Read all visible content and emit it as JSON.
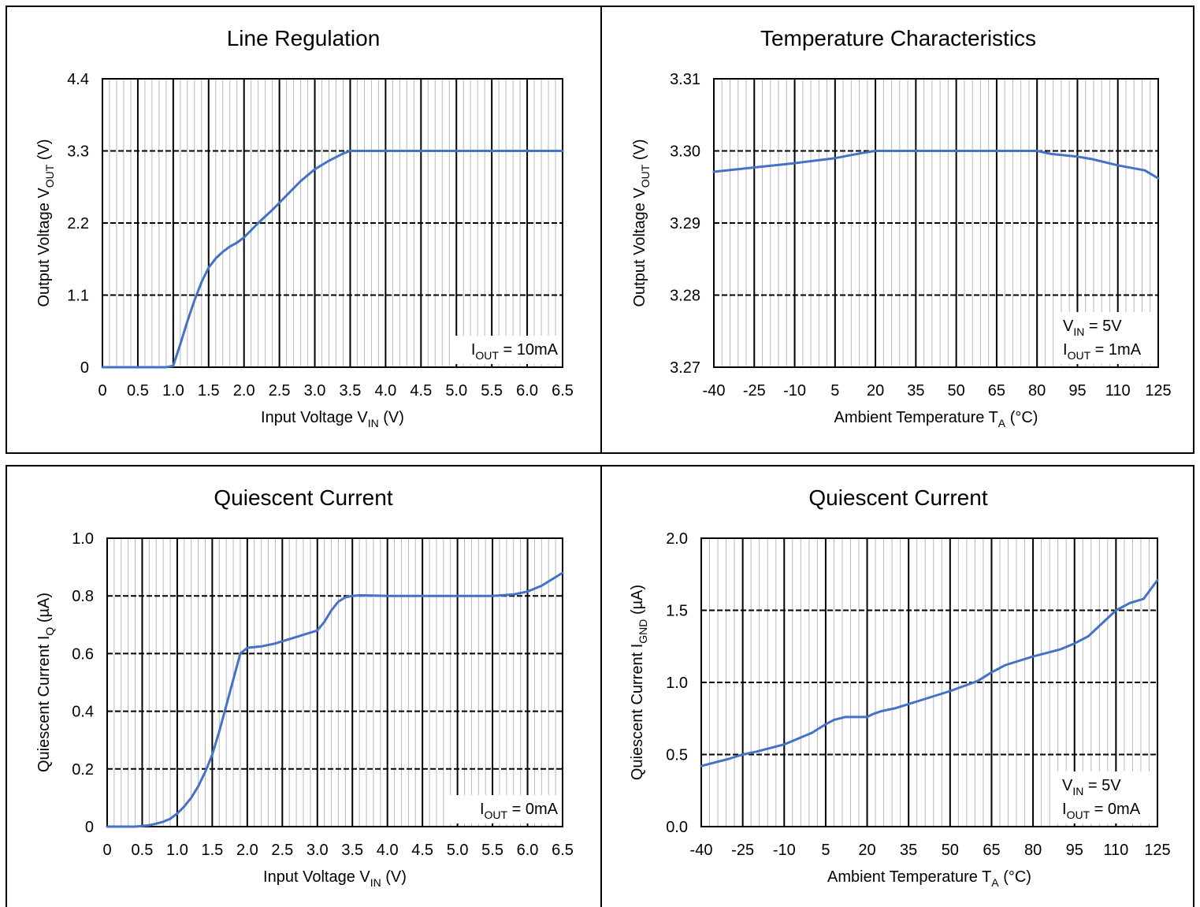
{
  "chart_data": [
    {
      "type": "line",
      "title": "Line Regulation",
      "xlabel": "Input Voltage V",
      "xlabel_sub": "IN",
      "xlabel_unit": " (V)",
      "ylabel": "Output Voltage V",
      "ylabel_sub": "OUT",
      "ylabel_unit": " (V)",
      "xlim": [
        0,
        6.5
      ],
      "ylim": [
        0,
        4.4
      ],
      "x_ticks": [
        0,
        0.5,
        1.0,
        1.5,
        2.0,
        2.5,
        3.0,
        3.5,
        4.0,
        4.5,
        5.0,
        5.5,
        6.0,
        6.5
      ],
      "x_tick_labels": [
        "0",
        "0.5",
        "1.0",
        "1.5",
        "2.0",
        "2.5",
        "3.0",
        "3.5",
        "4.0",
        "4.5",
        "5.0",
        "5.5",
        "6.0",
        "6.5"
      ],
      "y_ticks": [
        0,
        1.1,
        2.2,
        3.3,
        4.4
      ],
      "y_tick_labels": [
        "0",
        "1.1",
        "2.2",
        "3.3",
        "4.4"
      ],
      "x_minor_step": 0.1,
      "grid": true,
      "annotation": [
        {
          "main": "I",
          "sub": "OUT",
          "rest": " = 10mA"
        }
      ],
      "series": [
        {
          "color": "#4472C4",
          "x": [
            0,
            0.5,
            0.9,
            1.0,
            1.1,
            1.2,
            1.3,
            1.4,
            1.5,
            1.6,
            1.7,
            1.8,
            1.9,
            2.0,
            2.2,
            2.4,
            2.6,
            2.8,
            3.0,
            3.2,
            3.4,
            3.5,
            4.0,
            5.0,
            6.0,
            6.5
          ],
          "y": [
            0,
            0,
            0,
            0.02,
            0.35,
            0.7,
            1.02,
            1.3,
            1.52,
            1.66,
            1.76,
            1.84,
            1.9,
            1.98,
            2.2,
            2.4,
            2.62,
            2.84,
            3.02,
            3.15,
            3.26,
            3.3,
            3.3,
            3.3,
            3.3,
            3.3
          ]
        }
      ]
    },
    {
      "type": "line",
      "title": "Temperature Characteristics",
      "xlabel": "Ambient Temperature T",
      "xlabel_sub": "A",
      "xlabel_unit": " (°C)",
      "ylabel": "Output Voltage V",
      "ylabel_sub": "OUT",
      "ylabel_unit": " (V)",
      "xlim": [
        -40,
        125
      ],
      "ylim": [
        3.27,
        3.31
      ],
      "x_ticks": [
        -40,
        -25,
        -10,
        5,
        20,
        35,
        50,
        65,
        80,
        95,
        110,
        125
      ],
      "x_tick_labels": [
        "-40",
        "-25",
        "-10",
        "5",
        "20",
        "35",
        "50",
        "65",
        "80",
        "95",
        "110",
        "125"
      ],
      "y_ticks": [
        3.27,
        3.28,
        3.29,
        3.3,
        3.31
      ],
      "y_tick_labels": [
        "3.27",
        "3.28",
        "3.29",
        "3.30",
        "3.31"
      ],
      "x_minor_step": 3,
      "grid": true,
      "annotation": [
        {
          "main": "V",
          "sub": "IN",
          "rest": " = 5V"
        },
        {
          "main": "I",
          "sub": "OUT",
          "rest": " = 1mA"
        }
      ],
      "series": [
        {
          "color": "#4472C4",
          "x": [
            -40,
            -25,
            -10,
            5,
            15,
            20,
            25,
            35,
            50,
            65,
            75,
            80,
            85,
            95,
            100,
            110,
            120,
            125
          ],
          "y": [
            3.2971,
            3.2977,
            3.2983,
            3.299,
            3.2997,
            3.3,
            3.3,
            3.3,
            3.3,
            3.3,
            3.3,
            3.3,
            3.2996,
            3.2992,
            3.2989,
            3.298,
            3.2973,
            3.2962
          ]
        }
      ]
    },
    {
      "type": "line",
      "title": "Quiescent Current",
      "xlabel": "Input Voltage V",
      "xlabel_sub": "IN",
      "xlabel_unit": " (V)",
      "ylabel": "Quiescent Current I",
      "ylabel_sub": "Q",
      "ylabel_unit": " (µA)",
      "xlim": [
        0,
        6.5
      ],
      "ylim": [
        0,
        1.0
      ],
      "x_ticks": [
        0,
        0.5,
        1.0,
        1.5,
        2.0,
        2.5,
        3.0,
        3.5,
        4.0,
        4.5,
        5.0,
        5.5,
        6.0,
        6.5
      ],
      "x_tick_labels": [
        "0",
        "0.5",
        "1.0",
        "1.5",
        "2.0",
        "2.5",
        "3.0",
        "3.5",
        "4.0",
        "4.5",
        "5.0",
        "5.5",
        "6.0",
        "6.5"
      ],
      "y_ticks": [
        0,
        0.2,
        0.4,
        0.6,
        0.8,
        1.0
      ],
      "y_tick_labels": [
        "0",
        "0.2",
        "0.4",
        "0.6",
        "0.8",
        "1.0"
      ],
      "x_minor_step": 0.1,
      "grid": true,
      "annotation": [
        {
          "main": "I",
          "sub": "OUT",
          "rest": " = 0mA"
        }
      ],
      "series": [
        {
          "color": "#4472C4",
          "x": [
            0,
            0.4,
            0.5,
            0.6,
            0.7,
            0.8,
            0.9,
            1.0,
            1.1,
            1.2,
            1.3,
            1.4,
            1.5,
            1.6,
            1.7,
            1.8,
            1.9,
            2.0,
            2.2,
            2.4,
            2.6,
            2.8,
            3.0,
            3.1,
            3.2,
            3.3,
            3.4,
            3.5,
            3.6,
            3.8,
            4.0,
            4.5,
            5.0,
            5.5,
            5.8,
            6.0,
            6.2,
            6.4,
            6.5
          ],
          "y": [
            0,
            0,
            0.002,
            0.005,
            0.01,
            0.017,
            0.027,
            0.045,
            0.07,
            0.1,
            0.14,
            0.19,
            0.25,
            0.33,
            0.42,
            0.51,
            0.6,
            0.62,
            0.625,
            0.635,
            0.65,
            0.665,
            0.68,
            0.71,
            0.75,
            0.78,
            0.795,
            0.8,
            0.802,
            0.801,
            0.8,
            0.8,
            0.8,
            0.8,
            0.805,
            0.815,
            0.835,
            0.865,
            0.88
          ]
        }
      ]
    },
    {
      "type": "line",
      "title": "Quiescent Current",
      "xlabel": "Ambient Temperature T",
      "xlabel_sub": "A",
      "xlabel_unit": " (°C)",
      "ylabel": "Quiescent Current I",
      "ylabel_sub": "GND",
      "ylabel_unit": " (µA)",
      "xlim": [
        -40,
        125
      ],
      "ylim": [
        0,
        2.0
      ],
      "x_ticks": [
        -40,
        -25,
        -10,
        5,
        20,
        35,
        50,
        65,
        80,
        95,
        110,
        125
      ],
      "x_tick_labels": [
        "-40",
        "-25",
        "-10",
        "5",
        "20",
        "35",
        "50",
        "65",
        "80",
        "95",
        "110",
        "125"
      ],
      "y_ticks": [
        0,
        0.5,
        1.0,
        1.5,
        2.0
      ],
      "y_tick_labels": [
        "0.0",
        "0.5",
        "1.0",
        "1.5",
        "2.0"
      ],
      "x_minor_step": 3,
      "grid": true,
      "annotation": [
        {
          "main": "V",
          "sub": "IN",
          "rest": " = 5V"
        },
        {
          "main": "I",
          "sub": "OUT",
          "rest": " = 0mA"
        }
      ],
      "series": [
        {
          "color": "#4472C4",
          "x": [
            -40,
            -30,
            -25,
            -20,
            -10,
            0,
            5,
            8,
            12,
            15,
            20,
            22,
            25,
            30,
            35,
            40,
            50,
            60,
            65,
            70,
            80,
            90,
            95,
            100,
            105,
            110,
            115,
            120,
            125
          ],
          "y": [
            0.42,
            0.47,
            0.5,
            0.52,
            0.57,
            0.65,
            0.71,
            0.74,
            0.76,
            0.76,
            0.76,
            0.78,
            0.8,
            0.82,
            0.85,
            0.88,
            0.94,
            1.01,
            1.07,
            1.12,
            1.18,
            1.23,
            1.27,
            1.32,
            1.41,
            1.5,
            1.55,
            1.58,
            1.71
          ]
        }
      ]
    }
  ]
}
